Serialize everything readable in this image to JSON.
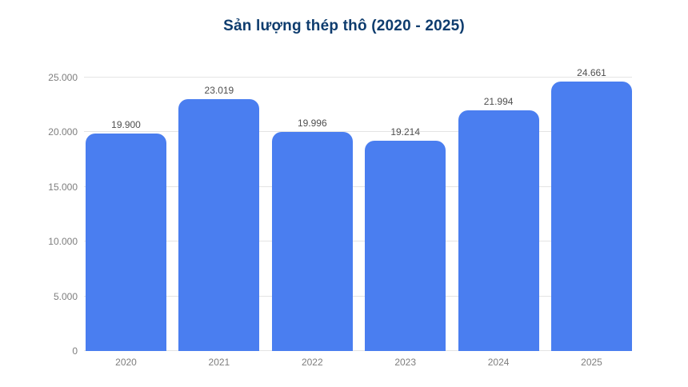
{
  "title": "Sản lượng thép thô (2020 - 2025)",
  "colors": {
    "bar": "#4a7ef0",
    "title": "#0e3c6e",
    "gridline": "#e4e4e4",
    "tick_label": "#7e7e7e",
    "value_label": "#4f4f4f",
    "background": "#ffffff"
  },
  "chart_data": {
    "type": "bar",
    "title": "Sản lượng thép thô (2020 - 2025)",
    "categories": [
      "2020",
      "2021",
      "2022",
      "2023",
      "2024",
      "2025"
    ],
    "values": [
      19900,
      23019,
      19996,
      19214,
      21994,
      24661
    ],
    "value_labels": [
      "19.900",
      "23.019",
      "19.996",
      "19.214",
      "21.994",
      "24.661"
    ],
    "xlabel": "",
    "ylabel": "",
    "ylim": [
      0,
      25000
    ],
    "y_tick_interval": 5000,
    "y_tick_labels": [
      "0",
      "5.000",
      "10.000",
      "15.000",
      "20.000",
      "25.000"
    ],
    "grid": "horizontal",
    "legend": "none"
  }
}
